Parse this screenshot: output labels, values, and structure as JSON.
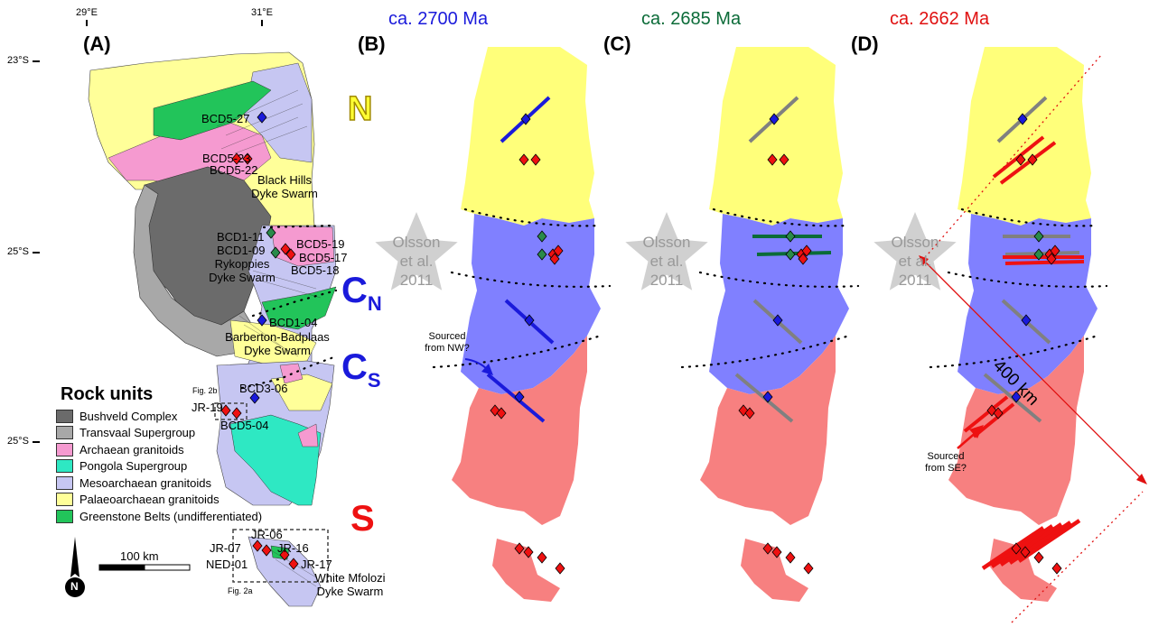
{
  "panels": {
    "a": {
      "letter": "(A)"
    },
    "b": {
      "letter": "(B)",
      "age": "ca. 2700 Ma",
      "age_color": "#1a1adb"
    },
    "c": {
      "letter": "(C)",
      "age": "ca. 2685 Ma",
      "age_color": "#0b6b38"
    },
    "d": {
      "letter": "(D)",
      "age": "ca. 2662 Ma",
      "age_color": "#e01010"
    }
  },
  "longitude_ticks": [
    "29°E",
    "31°E"
  ],
  "latitude_ticks": [
    "23°S",
    "25°S",
    "25°S"
  ],
  "blocks": {
    "north": "N",
    "central_north_main": "C",
    "central_north_sub": "N",
    "central_south_main": "C",
    "central_south_sub": "S",
    "south": "S"
  },
  "block_colors": {
    "north": "#ffff7a",
    "central": "#8080ff",
    "south": "#f78080"
  },
  "olsson_label": [
    "Olsson",
    "et al.",
    "2011"
  ],
  "sample_labels": {
    "bcd5_27": "BCD5-27",
    "bcd5_23": "BCD5-23",
    "bcd5_22": "BCD5-22",
    "bcd1_11": "BCD1-11",
    "bcd1_09": "BCD1-09",
    "bcd5_19": "BCD5-19",
    "bcd5_17": "BCD5-17",
    "bcd5_18": "BCD5-18",
    "bcd1_04": "BCD1-04",
    "bcd3_06": "BCD3-06",
    "jr_19": "JR-19",
    "bcd5_04": "BCD5-04",
    "jr_06": "JR-06",
    "jr_07": "JR-07",
    "jr_16": "JR-16",
    "ned_01": "NED-01",
    "jr_17": "JR-17"
  },
  "swarm_labels": {
    "black_hills": [
      "Black Hills",
      "Dyke Swarm"
    ],
    "rykoppies": [
      "Rykoppies",
      "Dyke Swarm"
    ],
    "barberton": [
      "Barberton-Badplaas",
      "Dyke Swarm"
    ],
    "white_mfolozi": [
      "White Mfolozi",
      "Dyke Swarm"
    ]
  },
  "figure_refs": {
    "fig2a": "Fig. 2a",
    "fig2b": "Fig. 2b"
  },
  "annotations": {
    "sourced_nw": [
      "Sourced",
      "from NW?"
    ],
    "sourced_se": [
      "Sourced",
      "from SE?"
    ],
    "distance": "400 km"
  },
  "scale_bar": {
    "label": "100 km"
  },
  "north_arrow": {
    "label": "N"
  },
  "legend": {
    "title": "Rock units",
    "items": [
      {
        "label": "Bushveld Complex",
        "color": "#6b6b6b"
      },
      {
        "label": "Transvaal Supergroup",
        "color": "#a8a8a8"
      },
      {
        "label": "Archaean granitoids",
        "color": "#f59ad0"
      },
      {
        "label": "Pongola Supergroup",
        "color": "#2ee8c3"
      },
      {
        "label": "Mesoarchaean granitoids",
        "color": "#c6c6f2"
      },
      {
        "label": "Palaeoarchaean granitoids",
        "color": "#ffff99"
      },
      {
        "label": "Greenstone Belts (undifferentiated)",
        "color": "#22c45a"
      }
    ]
  },
  "dyke_colors": {
    "ca2700": "#1a1adb",
    "ca2685": "#0b6b38",
    "ca2662": "#ee1111",
    "older": "#808080"
  }
}
